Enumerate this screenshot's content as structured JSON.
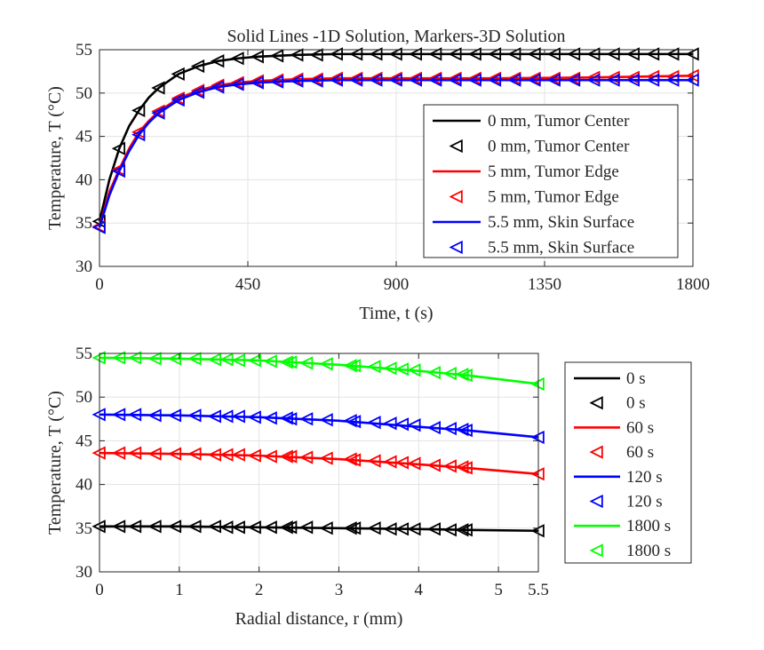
{
  "chart_data": [
    {
      "type": "line",
      "title": "Solid Lines -1D Solution, Markers-3D Solution",
      "xlabel": "Time, t (s)",
      "ylabel": "Temperature, T (°C)",
      "xlim": [
        0,
        1800
      ],
      "ylim": [
        30,
        55
      ],
      "xticks": [
        0,
        450,
        900,
        1350,
        1800
      ],
      "yticks": [
        30,
        35,
        40,
        45,
        50,
        55
      ],
      "grid": true,
      "legend_position": "right",
      "legend": [
        {
          "label": "0 mm, Tumor Center",
          "kind": "line",
          "color": "#000000"
        },
        {
          "label": "0 mm, Tumor Center",
          "kind": "marker",
          "color": "#000000"
        },
        {
          "label": "5 mm, Tumor Edge",
          "kind": "line",
          "color": "#ff0000"
        },
        {
          "label": "5 mm, Tumor Edge",
          "kind": "marker",
          "color": "#ff0000"
        },
        {
          "label": "5.5 mm, Skin Surface",
          "kind": "line",
          "color": "#0000ff"
        },
        {
          "label": "5.5 mm, Skin Surface",
          "kind": "marker",
          "color": "#0000ff"
        }
      ],
      "series": [
        {
          "name": "0 mm, Tumor Center",
          "color": "#000000",
          "line": {
            "x": [
              0,
              30,
              60,
              90,
              120,
              150,
              180,
              240,
              300,
              360,
              420,
              480,
              540,
              600,
              720,
              900,
              1200,
              1500,
              1800
            ],
            "y": [
              35.2,
              40.0,
              43.6,
              46.2,
              48.0,
              49.5,
              50.6,
              52.2,
              53.1,
              53.7,
              54.0,
              54.2,
              54.3,
              54.4,
              54.5,
              54.5,
              54.5,
              54.5,
              54.5
            ]
          },
          "markers": {
            "x": [
              0,
              60,
              120,
              180,
              240,
              300,
              360,
              420,
              480,
              540,
              600,
              660,
              720,
              780,
              840,
              900,
              960,
              1020,
              1080,
              1140,
              1200,
              1260,
              1320,
              1380,
              1440,
              1500,
              1560,
              1620,
              1680,
              1740,
              1800
            ],
            "y": [
              35.2,
              43.6,
              48.0,
              50.6,
              52.2,
              53.1,
              53.7,
              54.0,
              54.2,
              54.3,
              54.4,
              54.4,
              54.5,
              54.5,
              54.5,
              54.5,
              54.5,
              54.5,
              54.5,
              54.5,
              54.5,
              54.5,
              54.5,
              54.5,
              54.5,
              54.5,
              54.5,
              54.5,
              54.5,
              54.5,
              54.5
            ]
          }
        },
        {
          "name": "5 mm, Tumor Edge",
          "color": "#ff0000",
          "line": {
            "x": [
              0,
              30,
              60,
              90,
              120,
              150,
              180,
              240,
              300,
              360,
              420,
              480,
              540,
              600,
              720,
              900,
              1200,
              1500,
              1800
            ],
            "y": [
              34.6,
              38.6,
              41.2,
              43.6,
              45.5,
              46.8,
              47.9,
              49.4,
              50.3,
              50.9,
              51.2,
              51.4,
              51.5,
              51.6,
              51.7,
              51.7,
              51.7,
              51.8,
              52.0
            ]
          },
          "markers": {
            "x": [
              0,
              60,
              120,
              180,
              240,
              300,
              360,
              420,
              480,
              540,
              600,
              660,
              720,
              780,
              840,
              900,
              960,
              1020,
              1080,
              1140,
              1200,
              1260,
              1320,
              1380,
              1440,
              1500,
              1560,
              1620,
              1680,
              1740,
              1800
            ],
            "y": [
              34.6,
              41.2,
              45.5,
              47.9,
              49.4,
              50.3,
              50.9,
              51.2,
              51.4,
              51.5,
              51.6,
              51.6,
              51.7,
              51.7,
              51.7,
              51.7,
              51.7,
              51.7,
              51.7,
              51.7,
              51.7,
              51.7,
              51.7,
              51.7,
              51.7,
              51.8,
              51.8,
              51.8,
              51.9,
              51.9,
              52.0
            ]
          }
        },
        {
          "name": "5.5 mm, Skin Surface",
          "color": "#0000ff",
          "line": {
            "x": [
              0,
              30,
              60,
              90,
              120,
              150,
              180,
              240,
              300,
              360,
              420,
              480,
              540,
              600,
              720,
              900,
              1200,
              1500,
              1800
            ],
            "y": [
              34.5,
              38.2,
              41.0,
              43.3,
              45.2,
              46.6,
              47.7,
              49.2,
              50.1,
              50.7,
              51.0,
              51.2,
              51.3,
              51.4,
              51.5,
              51.5,
              51.5,
              51.5,
              51.5
            ]
          },
          "markers": {
            "x": [
              0,
              60,
              120,
              180,
              240,
              300,
              360,
              420,
              480,
              540,
              600,
              660,
              720,
              780,
              840,
              900,
              960,
              1020,
              1080,
              1140,
              1200,
              1260,
              1320,
              1380,
              1440,
              1500,
              1560,
              1620,
              1680,
              1740,
              1800
            ],
            "y": [
              34.5,
              41.0,
              45.2,
              47.7,
              49.2,
              50.1,
              50.7,
              51.0,
              51.2,
              51.3,
              51.4,
              51.4,
              51.5,
              51.5,
              51.5,
              51.5,
              51.5,
              51.5,
              51.5,
              51.5,
              51.5,
              51.5,
              51.5,
              51.5,
              51.5,
              51.5,
              51.5,
              51.5,
              51.5,
              51.5,
              51.5
            ]
          }
        }
      ]
    },
    {
      "type": "line",
      "title": "",
      "xlabel": "Radial distance, r (mm)",
      "ylabel": "Temperature, T (°C)",
      "xlim": [
        0,
        5.5
      ],
      "ylim": [
        30,
        55
      ],
      "xticks": [
        0,
        1,
        2,
        3,
        4,
        5,
        5.5
      ],
      "xtick_labels": [
        "0",
        "1",
        "2",
        "3",
        "4",
        "5",
        "5.5"
      ],
      "yticks": [
        30,
        35,
        40,
        45,
        50,
        55
      ],
      "grid": true,
      "legend_position": "outside-right",
      "legend": [
        {
          "label": "0 s",
          "kind": "line",
          "color": "#000000"
        },
        {
          "label": "0 s",
          "kind": "marker",
          "color": "#000000"
        },
        {
          "label": "60 s",
          "kind": "line",
          "color": "#ff0000"
        },
        {
          "label": "60 s",
          "kind": "marker",
          "color": "#ff0000"
        },
        {
          "label": "120 s",
          "kind": "line",
          "color": "#0000ff"
        },
        {
          "label": "120 s",
          "kind": "marker",
          "color": "#0000ff"
        },
        {
          "label": "1800 s",
          "kind": "line",
          "color": "#00ff00"
        },
        {
          "label": "1800 s",
          "kind": "marker",
          "color": "#00ff00"
        }
      ],
      "series": [
        {
          "name": "0 s",
          "color": "#000000",
          "line": {
            "x": [
              0,
              1,
              2,
              3,
              4,
              4.6,
              5.5
            ],
            "y": [
              35.2,
              35.2,
              35.1,
              35.0,
              34.9,
              34.8,
              34.7
            ]
          },
          "markers": {
            "x": [
              0,
              0.25,
              0.45,
              0.7,
              0.95,
              1.2,
              1.45,
              1.6,
              1.75,
              1.95,
              2.15,
              2.35,
              2.4,
              2.6,
              2.85,
              3.15,
              3.2,
              3.45,
              3.65,
              3.8,
              3.95,
              4.2,
              4.4,
              4.55,
              4.6,
              5.5
            ],
            "y": [
              35.2,
              35.2,
              35.2,
              35.2,
              35.2,
              35.2,
              35.2,
              35.1,
              35.1,
              35.1,
              35.1,
              35.1,
              35.1,
              35.1,
              35.0,
              35.0,
              35.0,
              35.0,
              34.9,
              34.9,
              34.9,
              34.9,
              34.8,
              34.8,
              34.8,
              34.7
            ]
          }
        },
        {
          "name": "60 s",
          "color": "#ff0000",
          "line": {
            "x": [
              0,
              1,
              2,
              3,
              4,
              4.6,
              5.5
            ],
            "y": [
              43.6,
              43.5,
              43.3,
              42.9,
              42.3,
              41.9,
              41.2
            ]
          },
          "markers": {
            "x": [
              0,
              0.25,
              0.45,
              0.7,
              0.95,
              1.2,
              1.45,
              1.6,
              1.75,
              1.95,
              2.15,
              2.35,
              2.4,
              2.6,
              2.85,
              3.15,
              3.2,
              3.45,
              3.65,
              3.8,
              3.95,
              4.2,
              4.4,
              4.55,
              4.6,
              5.5
            ],
            "y": [
              43.6,
              43.6,
              43.6,
              43.5,
              43.5,
              43.5,
              43.4,
              43.4,
              43.4,
              43.3,
              43.2,
              43.2,
              43.2,
              43.1,
              43.0,
              42.9,
              42.8,
              42.7,
              42.6,
              42.5,
              42.4,
              42.2,
              42.1,
              42.0,
              41.9,
              41.2
            ]
          }
        },
        {
          "name": "120 s",
          "color": "#0000ff",
          "line": {
            "x": [
              0,
              1,
              2,
              3,
              4,
              4.6,
              5.5
            ],
            "y": [
              48.0,
              47.9,
              47.7,
              47.3,
              46.6,
              46.2,
              45.4
            ]
          },
          "markers": {
            "x": [
              0,
              0.25,
              0.45,
              0.7,
              0.95,
              1.2,
              1.45,
              1.6,
              1.75,
              1.95,
              2.15,
              2.35,
              2.4,
              2.6,
              2.85,
              3.15,
              3.2,
              3.45,
              3.65,
              3.8,
              3.95,
              4.2,
              4.4,
              4.55,
              4.6,
              5.5
            ],
            "y": [
              48.0,
              48.0,
              48.0,
              47.9,
              47.9,
              47.9,
              47.8,
              47.8,
              47.8,
              47.7,
              47.6,
              47.6,
              47.5,
              47.5,
              47.4,
              47.3,
              47.2,
              47.1,
              47.0,
              46.9,
              46.8,
              46.5,
              46.4,
              46.3,
              46.2,
              45.4
            ]
          }
        },
        {
          "name": "1800 s",
          "color": "#00ff00",
          "line": {
            "x": [
              0,
              1,
              2,
              3,
              4,
              4.6,
              5.5
            ],
            "y": [
              54.5,
              54.4,
              54.2,
              53.7,
              53.0,
              52.5,
              51.5
            ]
          },
          "markers": {
            "x": [
              0,
              0.25,
              0.45,
              0.7,
              0.95,
              1.2,
              1.45,
              1.6,
              1.75,
              1.95,
              2.15,
              2.35,
              2.4,
              2.6,
              2.85,
              3.15,
              3.2,
              3.45,
              3.65,
              3.8,
              3.95,
              4.2,
              4.4,
              4.55,
              4.6,
              5.5
            ],
            "y": [
              54.5,
              54.5,
              54.5,
              54.4,
              54.4,
              54.4,
              54.3,
              54.3,
              54.2,
              54.2,
              54.1,
              54.0,
              54.0,
              53.9,
              53.8,
              53.6,
              53.6,
              53.5,
              53.3,
              53.2,
              53.1,
              52.8,
              52.7,
              52.6,
              52.5,
              51.5
            ]
          }
        }
      ]
    }
  ]
}
